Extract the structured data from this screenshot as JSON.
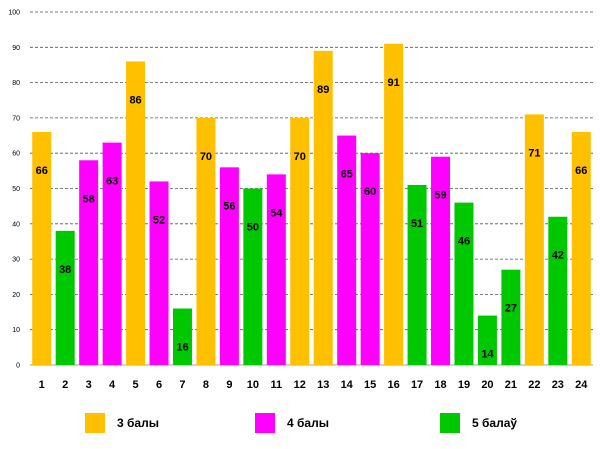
{
  "chart_data": {
    "type": "bar",
    "categories": [
      "1",
      "2",
      "3",
      "4",
      "5",
      "6",
      "7",
      "8",
      "9",
      "10",
      "11",
      "12",
      "13",
      "14",
      "15",
      "16",
      "17",
      "18",
      "19",
      "20",
      "21",
      "22",
      "23",
      "24"
    ],
    "values": [
      66,
      38,
      58,
      63,
      86,
      52,
      16,
      70,
      56,
      50,
      54,
      70,
      89,
      65,
      60,
      91,
      51,
      59,
      46,
      14,
      27,
      71,
      42,
      66
    ],
    "groups": [
      "3",
      "5",
      "4",
      "4",
      "3",
      "4",
      "5",
      "3",
      "4",
      "5",
      "4",
      "3",
      "3",
      "4",
      "4",
      "3",
      "5",
      "4",
      "5",
      "5",
      "5",
      "3",
      "5",
      "3"
    ],
    "yticks": [
      "0",
      "10",
      "20",
      "30",
      "40",
      "50",
      "60",
      "70",
      "80",
      "90",
      "100"
    ],
    "ylim": [
      0,
      100
    ],
    "grid": true,
    "legend_position": "bottom",
    "legend": [
      {
        "key": "3",
        "label": "3 балы",
        "color": "#FFC000"
      },
      {
        "key": "4",
        "label": "4 балы",
        "color": "#FF00FF"
      },
      {
        "key": "5",
        "label": "5 балаў",
        "color": "#00C800"
      }
    ]
  }
}
